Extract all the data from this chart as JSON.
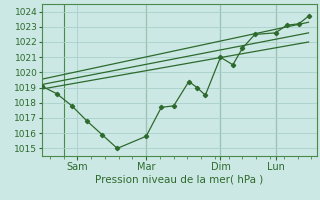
{
  "bg_color": "#cce8e4",
  "grid_color": "#aacfcb",
  "line_color": "#2d6a2d",
  "vline_color": "#4a8a4a",
  "xlabel": "Pression niveau de la mer( hPa )",
  "ylim": [
    1014.5,
    1024.5
  ],
  "yticks": [
    1015,
    1016,
    1017,
    1018,
    1019,
    1020,
    1021,
    1022,
    1023,
    1024
  ],
  "xtick_labels": [
    "Sam",
    "Mar",
    "Dim",
    "Lun"
  ],
  "xtick_positions": [
    0.13,
    0.38,
    0.65,
    0.85
  ],
  "xlim": [
    0,
    1.0
  ],
  "x_vlines": [
    0.08,
    0.38,
    0.65,
    0.85
  ],
  "series1_x": [
    0.0,
    0.055,
    0.11,
    0.165,
    0.22,
    0.275,
    0.38,
    0.435,
    0.48,
    0.535,
    0.565,
    0.595,
    0.65,
    0.695,
    0.73,
    0.775,
    0.85,
    0.89,
    0.935,
    0.97
  ],
  "series1_y": [
    1019.1,
    1018.6,
    1017.8,
    1016.8,
    1015.9,
    1015.0,
    1015.8,
    1017.7,
    1017.8,
    1019.4,
    1019.0,
    1018.5,
    1021.0,
    1020.5,
    1021.6,
    1022.5,
    1022.6,
    1023.1,
    1023.2,
    1023.7
  ],
  "trend1_x": [
    0.0,
    0.97
  ],
  "trend1_y": [
    1018.9,
    1022.0
  ],
  "trend2_x": [
    0.0,
    0.97
  ],
  "trend2_y": [
    1019.2,
    1022.6
  ],
  "trend3_x": [
    0.0,
    0.97
  ],
  "trend3_y": [
    1019.55,
    1023.3
  ],
  "figsize": [
    3.2,
    2.0
  ],
  "dpi": 100
}
